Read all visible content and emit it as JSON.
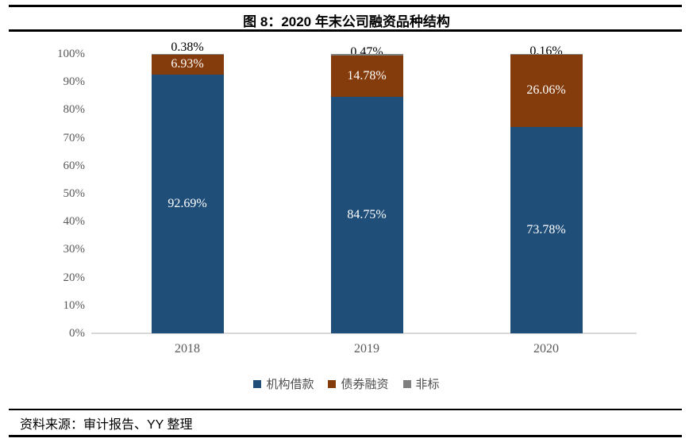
{
  "title": "图 8：2020 年末公司融资品种结构",
  "source": "资料来源：审计报告、YY 整理",
  "chart_data": {
    "type": "bar",
    "stacked": true,
    "percent_stacked": true,
    "title": "图 8：2020 年末公司融资品种结构",
    "categories": [
      "2018",
      "2019",
      "2020"
    ],
    "series": [
      {
        "name": "机构借款",
        "color": "#1F4E79",
        "values": [
          92.69,
          84.75,
          73.78
        ],
        "labels": [
          "92.69%",
          "84.75%",
          "73.78%"
        ],
        "label_color": "#ffffff"
      },
      {
        "name": "债券融资",
        "color": "#843C0C",
        "values": [
          6.93,
          14.78,
          26.06
        ],
        "labels": [
          "6.93%",
          "14.78%",
          "26.06%"
        ],
        "label_color": "#ffffff"
      },
      {
        "name": "非标",
        "color": "#7F7F7F",
        "values": [
          0.38,
          0.47,
          0.16
        ],
        "labels": [
          "0.38%",
          "0.47%",
          "0.16%"
        ],
        "label_color": "#000000"
      }
    ],
    "xlabel": "",
    "ylabel": "",
    "ylim": [
      0,
      100
    ],
    "yticks": [
      "0%",
      "10%",
      "20%",
      "30%",
      "40%",
      "50%",
      "60%",
      "70%",
      "80%",
      "90%",
      "100%"
    ],
    "grid": false,
    "legend_position": "bottom",
    "axis_line_color": "#D9D9D9",
    "tick_label_color": "#595959"
  }
}
